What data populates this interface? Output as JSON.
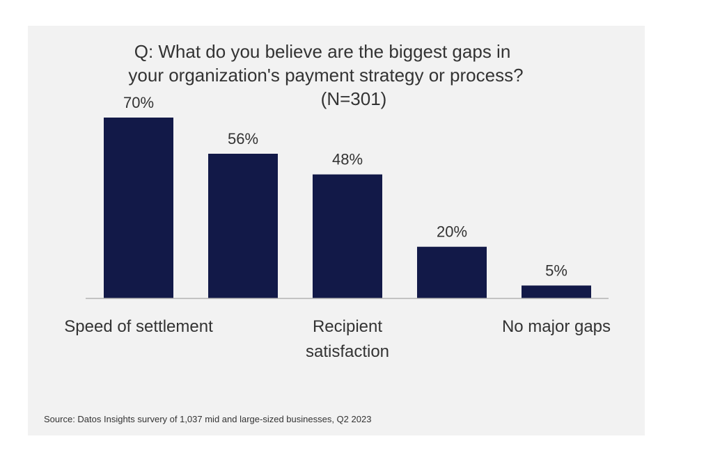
{
  "chart_data": {
    "type": "bar",
    "title_lines": [
      "Q: What do you believe are the biggest gaps in",
      "your organization's payment strategy or process?",
      "(N=301)"
    ],
    "categories": [
      "Speed of settlement",
      "",
      "Recipient satisfaction",
      "",
      "No major gaps"
    ],
    "values": [
      70,
      56,
      48,
      20,
      5
    ],
    "value_labels": [
      "70%",
      "56%",
      "48%",
      "20%",
      "5%"
    ],
    "category_label_lines": [
      [
        "Speed of settlement"
      ],
      [],
      [
        "Recipient",
        "satisfaction"
      ],
      [],
      [
        "No major gaps"
      ]
    ],
    "ylim": [
      0,
      70
    ],
    "grid": false,
    "legend": "none",
    "bar_color": "#121948",
    "axis_color": "#b3b3b3",
    "text_color": "#333333"
  },
  "source": "Source: Datos Insights survery of 1,037 mid and large-sized businesses, Q2 2023"
}
